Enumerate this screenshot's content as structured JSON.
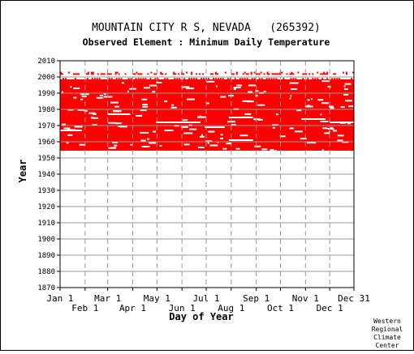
{
  "chart_data": {
    "type": "scatter",
    "title": "MOUNTAIN CITY R S, NEVADA   (265392)",
    "subtitle": "Observed Element : Minimum Daily Temperature",
    "xlabel": "Day of Year",
    "ylabel": "Year",
    "credit": [
      "Western",
      "Regional",
      "Climate",
      "Center"
    ],
    "x_ticks_top_row": [
      "Jan 1",
      "Mar 1",
      "May 1",
      "Jul 1",
      "Sep 1",
      "Nov 1",
      "Dec 31"
    ],
    "x_ticks_bottom_row": [
      "Feb 1",
      "Apr 1",
      "Jun 1",
      "Aug 1",
      "Oct 1",
      "Dec 1"
    ],
    "x_tick_days": {
      "Jan 1": 1,
      "Feb 1": 32,
      "Mar 1": 60,
      "Apr 1": 91,
      "May 1": 121,
      "Jun 1": 152,
      "Jul 1": 182,
      "Aug 1": 213,
      "Sep 1": 244,
      "Oct 1": 274,
      "Nov 1": 305,
      "Dec 1": 335,
      "Dec 31": 365
    },
    "y_ticks": [
      "2010",
      "2000",
      "1990",
      "1980",
      "1970",
      "1960",
      "1950",
      "1940",
      "1930",
      "1920",
      "1910",
      "1900",
      "1890",
      "1880",
      "1870"
    ],
    "xlim": [
      1,
      365
    ],
    "ylim": [
      1870,
      2010
    ],
    "grid": true,
    "point_color": "#ff0000",
    "data_coverage": {
      "main_block": {
        "years": [
          1955,
          1998
        ],
        "days": [
          1,
          365
        ]
      },
      "early_start": {
        "days": [
          1,
          55
        ],
        "first_year": 1960
      },
      "late_sparse_year": 2002,
      "gap_lines": [
        {
          "year": 1967,
          "days": [
            1,
            28
          ]
        },
        {
          "year": 1972,
          "days": [
            120,
            175
          ]
        },
        {
          "year": 1977,
          "days": [
            60,
            88
          ]
        },
        {
          "year": 1961,
          "days": [
            210,
            240
          ]
        },
        {
          "year": 1975,
          "days": [
            210,
            240
          ]
        },
        {
          "year": 1969,
          "days": [
            180,
            205
          ]
        },
        {
          "year": 1974,
          "days": [
            300,
            330
          ]
        },
        {
          "year": 1972,
          "days": [
            335,
            365
          ]
        }
      ]
    }
  }
}
